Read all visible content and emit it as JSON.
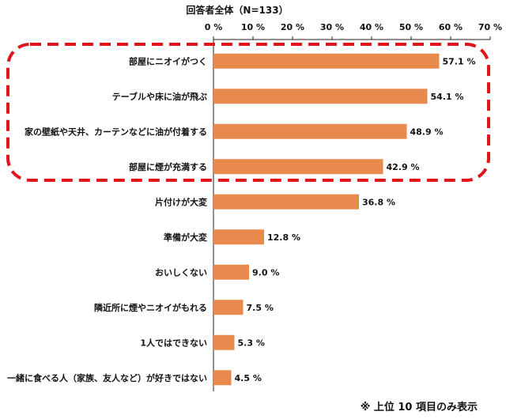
{
  "chart_data": {
    "type": "bar",
    "orientation": "horizontal",
    "title": "回答者全体（N=133）",
    "categories": [
      "部屋にニオイがつく",
      "テーブルや床に油が飛ぶ",
      "家の壁紙や天井、カーテンなどに油が付着する",
      "部屋に煙が充満する",
      "片付けが大変",
      "準備が大変",
      "おいしくない",
      "隣近所に煙やニオイがもれる",
      "1人ではできない",
      "一緒に食べる人（家族、友人など）が好きではない"
    ],
    "values": [
      57.1,
      54.1,
      48.9,
      42.9,
      36.8,
      12.8,
      9.0,
      7.5,
      5.3,
      4.5
    ],
    "value_labels": [
      "57.1 %",
      "54.1 %",
      "48.9 %",
      "42.9 %",
      "36.8 %",
      "12.8 %",
      "9.0 %",
      "7.5 %",
      "5.3 %",
      "4.5 %"
    ],
    "xlim": [
      0,
      70
    ],
    "ticks": [
      0,
      10,
      20,
      30,
      40,
      50,
      60,
      70
    ],
    "tick_labels": [
      "0 %",
      "10 %",
      "20 %",
      "30 %",
      "40 %",
      "50 %",
      "60 %",
      "70 %"
    ],
    "x_axis_position": "top",
    "grid": false,
    "bar_color": "#E8894E",
    "highlight_color": "#E0161B",
    "highlight_group": "top 4 categories",
    "note": "※ 上位 10 項目のみ表示"
  }
}
